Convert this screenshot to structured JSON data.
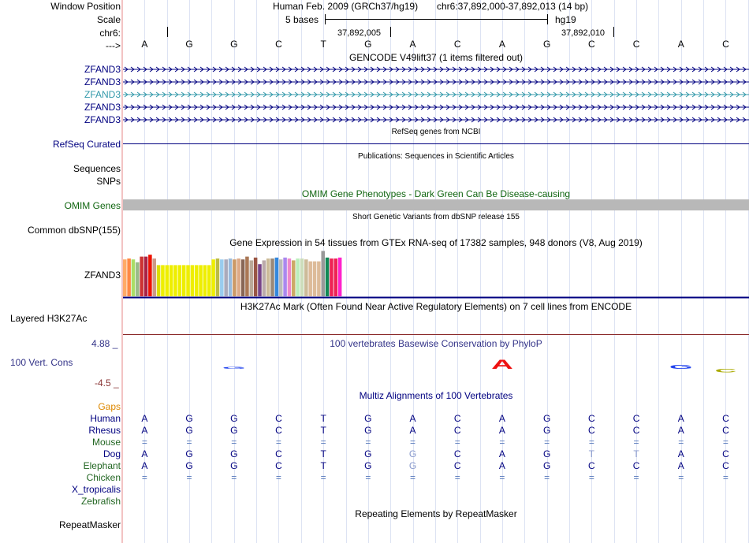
{
  "header": {
    "labels": {
      "window_position": "Window Position",
      "scale": "Scale",
      "chrom": "chr6:",
      "strand": "--->"
    },
    "assembly": "Human Feb. 2009 (GRCh37/hg19)",
    "position": "chr6:37,892,000-37,892,013 (14 bp)",
    "scale_text": "5 bases",
    "db": "hg19",
    "coord1": "37,892,005",
    "coord2": "37,892,010"
  },
  "bases": [
    "A",
    "G",
    "G",
    "C",
    "T",
    "G",
    "A",
    "C",
    "A",
    "G",
    "C",
    "C",
    "A",
    "C"
  ],
  "tracks": {
    "gencode": {
      "title": "GENCODE V49lift37 (1 items filtered out)",
      "genes": [
        "ZFAND3",
        "ZFAND3",
        "ZFAND3",
        "ZFAND3",
        "ZFAND3"
      ]
    },
    "refseq": {
      "title": "RefSeq genes from NCBI",
      "label": "RefSeq Curated"
    },
    "publications": {
      "title": "Publications: Sequences in Scientific Articles",
      "label1": "Sequences",
      "label2": "SNPs"
    },
    "omim": {
      "title": "OMIM Gene Phenotypes - Dark Green Can Be Disease-causing",
      "label": "OMIM Genes"
    },
    "dbsnp": {
      "title": "Short Genetic Variants from dbSNP release 155",
      "label": "Common dbSNP(155)"
    },
    "gtex": {
      "title": "Gene Expression in 54 tissues from GTEx RNA-seq of 17382 samples, 948 donors (V8, Aug 2019)",
      "label": "ZFAND3"
    },
    "h3k27ac": {
      "title": "H3K27Ac Mark (Often Found Near Active Regulatory Elements) on 7 cell lines from ENCODE",
      "label": "Layered H3K27Ac"
    },
    "phylop": {
      "title": "100 vertebrates Basewise Conservation by PhyloP",
      "label": "100 Vert. Cons",
      "max": "4.88 _",
      "min": "-4.5 _"
    },
    "multiz": {
      "title": "Multiz Alignments of 100 Vertebrates",
      "gaps_label": "Gaps"
    },
    "repeatmasker": {
      "title": "Repeating Elements by RepeatMasker",
      "label": "RepeatMasker"
    }
  },
  "gtex_tissues": [
    {
      "value": 0.78,
      "color": "#ffaa66"
    },
    {
      "value": 0.8,
      "color": "#ff8844"
    },
    {
      "value": 0.78,
      "color": "#aadd66"
    },
    {
      "value": 0.72,
      "color": "#99bb88"
    },
    {
      "value": 0.84,
      "color": "#cc3333"
    },
    {
      "value": 0.84,
      "color": "#aa2244"
    },
    {
      "value": 0.88,
      "color": "#ee1100"
    },
    {
      "value": 0.8,
      "color": "#cc9988"
    },
    {
      "value": 0.66,
      "color": "#dddd00"
    },
    {
      "value": 0.66,
      "color": "#eeee00"
    },
    {
      "value": 0.66,
      "color": "#eeee00"
    },
    {
      "value": 0.66,
      "color": "#eeee00"
    },
    {
      "value": 0.66,
      "color": "#eeee00"
    },
    {
      "value": 0.66,
      "color": "#eeee00"
    },
    {
      "value": 0.66,
      "color": "#eeee00"
    },
    {
      "value": 0.66,
      "color": "#eeee00"
    },
    {
      "value": 0.66,
      "color": "#eeee00"
    },
    {
      "value": 0.66,
      "color": "#eeee00"
    },
    {
      "value": 0.66,
      "color": "#eeee00"
    },
    {
      "value": 0.66,
      "color": "#eeee00"
    },
    {
      "value": 0.66,
      "color": "#eeee00"
    },
    {
      "value": 0.78,
      "color": "#eeee00"
    },
    {
      "value": 0.8,
      "color": "#bbbb44"
    },
    {
      "value": 0.78,
      "color": "#99ccee"
    },
    {
      "value": 0.78,
      "color": "#aaaabb"
    },
    {
      "value": 0.8,
      "color": "#99bbdd"
    },
    {
      "value": 0.78,
      "color": "#cc9966"
    },
    {
      "value": 0.8,
      "color": "#ddaa88"
    },
    {
      "value": 0.78,
      "color": "#886655"
    },
    {
      "value": 0.84,
      "color": "#aa7755"
    },
    {
      "value": 0.76,
      "color": "#bbaa99"
    },
    {
      "value": 0.82,
      "color": "#995544"
    },
    {
      "value": 0.68,
      "color": "#774488"
    },
    {
      "value": 0.76,
      "color": "#bbaaaa"
    },
    {
      "value": 0.8,
      "color": "#ccbb99"
    },
    {
      "value": 0.8,
      "color": "#998877"
    },
    {
      "value": 0.82,
      "color": "#3388dd"
    },
    {
      "value": 0.78,
      "color": "#bbbbbb"
    },
    {
      "value": 0.82,
      "color": "#aa88ee"
    },
    {
      "value": 0.8,
      "color": "#ee88cc"
    },
    {
      "value": 0.76,
      "color": "#ccaa66"
    },
    {
      "value": 0.8,
      "color": "#bbeebb"
    },
    {
      "value": 0.8,
      "color": "#ccddbb"
    },
    {
      "value": 0.78,
      "color": "#ccbb99"
    },
    {
      "value": 0.74,
      "color": "#ddbb99"
    },
    {
      "value": 0.74,
      "color": "#ddbb99"
    },
    {
      "value": 0.74,
      "color": "#ddbb99"
    },
    {
      "value": 0.96,
      "color": "#999999"
    },
    {
      "value": 0.82,
      "color": "#118855"
    },
    {
      "value": 0.8,
      "color": "#ee2255"
    },
    {
      "value": 0.8,
      "color": "#ee2255"
    },
    {
      "value": 0.82,
      "color": "#ff22cc"
    }
  ],
  "phylop_logo": [
    {
      "base": "G",
      "score": 0.6,
      "color": "#2244ee"
    },
    {
      "base": "A",
      "score": 2.8,
      "color": "#ee1111"
    },
    {
      "base": "G",
      "score": 1.2,
      "color": "#2244ee"
    },
    {
      "base": "C",
      "score": -1.0,
      "color": "#aaaa00"
    }
  ],
  "species": [
    {
      "name": "Human",
      "color": "#000080",
      "bases": [
        "A",
        "G",
        "G",
        "C",
        "T",
        "G",
        "A",
        "C",
        "A",
        "G",
        "C",
        "C",
        "A",
        "C"
      ]
    },
    {
      "name": "Rhesus",
      "color": "#000080",
      "bases": [
        "A",
        "G",
        "G",
        "C",
        "T",
        "G",
        "A",
        "C",
        "A",
        "G",
        "C",
        "C",
        "A",
        "C"
      ]
    },
    {
      "name": "Mouse",
      "color": "#226622",
      "bases": [
        "=",
        "=",
        "=",
        "=",
        "=",
        "=",
        "=",
        "=",
        "=",
        "=",
        "=",
        "=",
        "=",
        "="
      ]
    },
    {
      "name": "Dog",
      "color": "#000080",
      "bases": [
        "A",
        "G",
        "G",
        "C",
        "T",
        "G",
        "G",
        "C",
        "A",
        "G",
        "T",
        "T",
        "A",
        "C"
      ]
    },
    {
      "name": "Elephant",
      "color": "#226622",
      "bases": [
        "A",
        "G",
        "G",
        "C",
        "T",
        "G",
        "G",
        "C",
        "A",
        "G",
        "C",
        "C",
        "A",
        "C"
      ]
    },
    {
      "name": "Chicken",
      "color": "#226622",
      "bases": [
        "=",
        "=",
        "=",
        "=",
        "=",
        "=",
        "=",
        "=",
        "=",
        "=",
        "=",
        "=",
        "=",
        "="
      ]
    },
    {
      "name": "X_tropicalis",
      "color": "#000080",
      "bases": []
    },
    {
      "name": "Zebrafish",
      "color": "#226622",
      "bases": []
    }
  ],
  "colors": {
    "label_blue": "#000080",
    "gene_blue": "#000080",
    "gene_teal": "#3399aa",
    "omim_green": "#116611",
    "omim_bar": "#b8b8b8",
    "h3k27ac_line": "#8b2a2a",
    "phylop_max": "#333388",
    "phylop_min": "#883333",
    "gaps": "#dd8800"
  }
}
